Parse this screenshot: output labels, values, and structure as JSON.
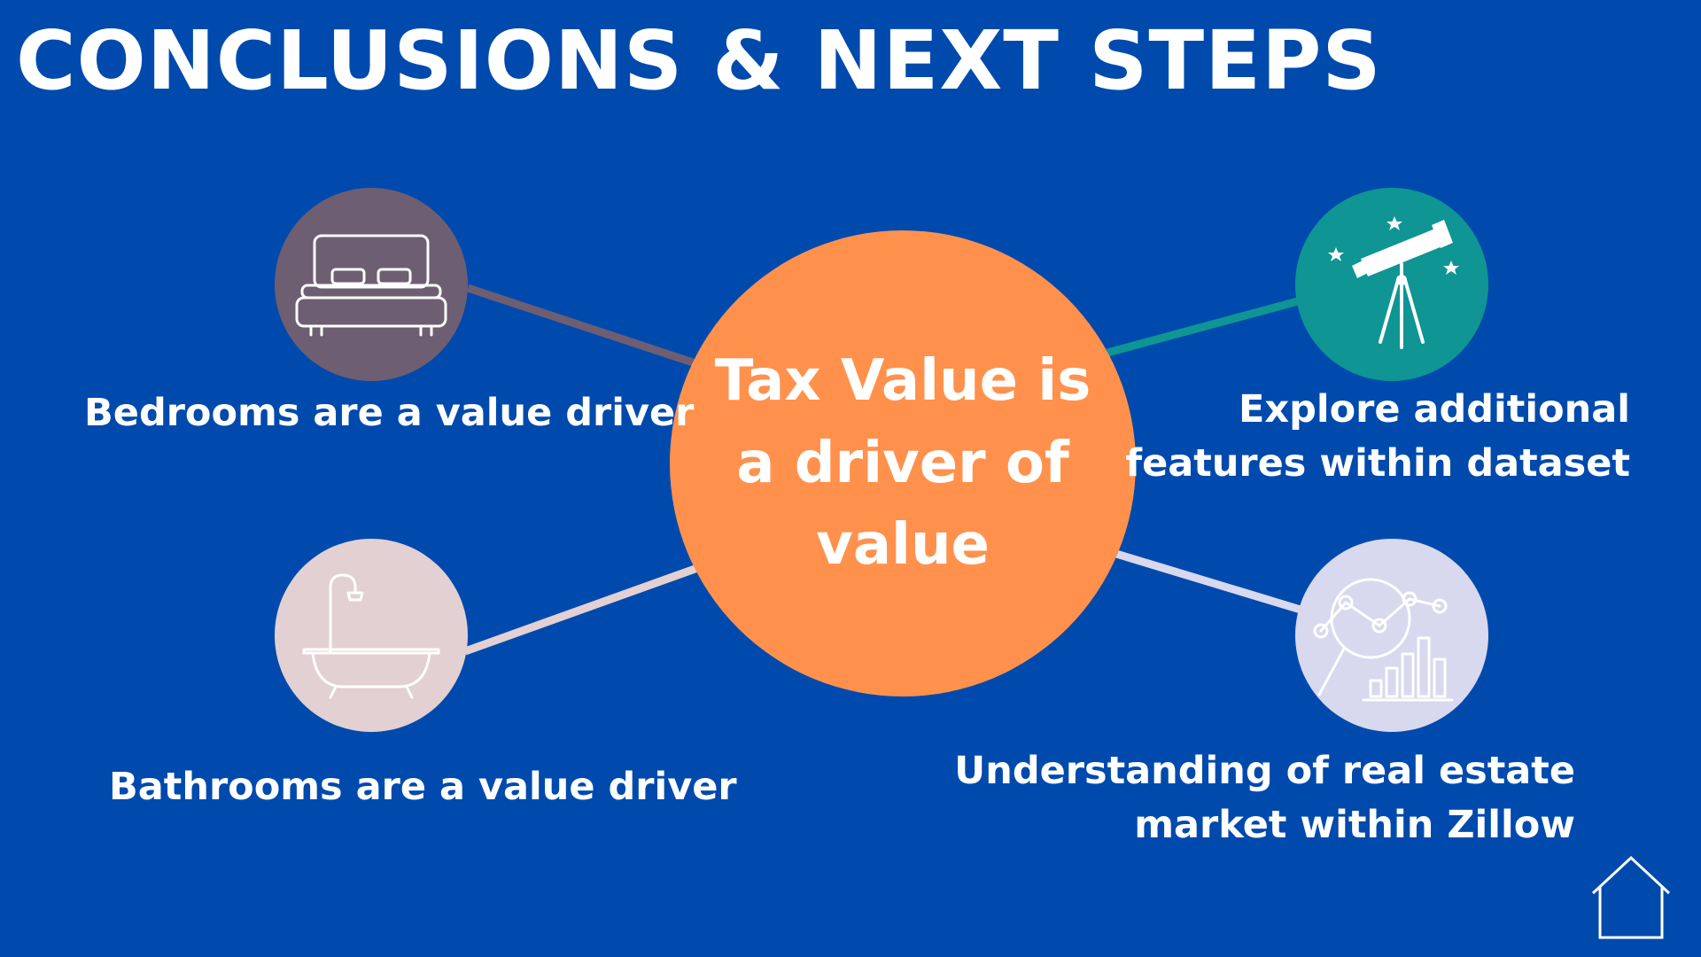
{
  "title": "CONCLUSIONS & NEXT STEPS",
  "center": {
    "line1": "Tax Value is",
    "line2": "a driver of",
    "line3": "value",
    "color": "#FF914D"
  },
  "nodes": [
    {
      "icon": "bed-icon",
      "label": "Bedrooms are a value driver",
      "color": "#6E5E72",
      "connector_color": "#6E5E72"
    },
    {
      "icon": "bathtub-icon",
      "label": "Bathrooms are a value driver",
      "color": "#E3D0D2",
      "connector_color": "#E3D0D2"
    },
    {
      "icon": "telescope-icon",
      "label_lines": [
        "Explore additional",
        "features within dataset"
      ],
      "color": "#0E9594",
      "connector_color": "#0E9594"
    },
    {
      "icon": "analytics-icon",
      "label_lines": [
        "Understanding of real estate",
        "market within Zillow"
      ],
      "color": "#D8D8EE",
      "connector_color": "#D8D8EE"
    }
  ],
  "footer_icon": "house-icon",
  "background": "#004AAD"
}
